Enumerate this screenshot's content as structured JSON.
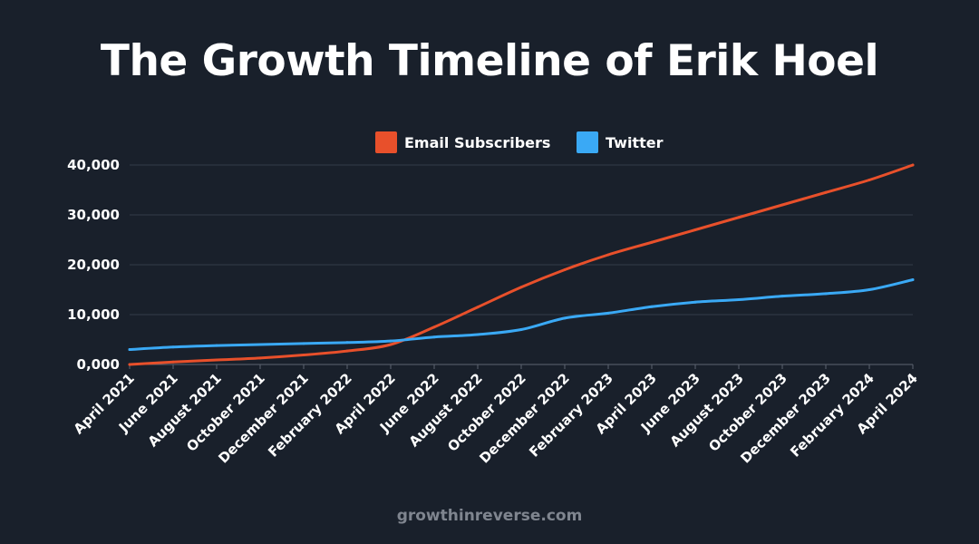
{
  "title": "The Growth Timeline of Erik Hoel",
  "footer": "growthinreverse.com",
  "chart_data": {
    "type": "line",
    "title": "The Growth Timeline of Erik Hoel",
    "xlabel": "",
    "ylabel": "",
    "ylim": [
      0,
      40000
    ],
    "grid": true,
    "legend_position": "top-center",
    "y_ticks": [
      "0,000",
      "10,000",
      "20,000",
      "30,000",
      "40,000"
    ],
    "x": [
      "April 2021",
      "June 2021",
      "August 2021",
      "October 2021",
      "December 2021",
      "February 2022",
      "April 2022",
      "June 2022",
      "August 2022",
      "October 2022",
      "December 2022",
      "February 2023",
      "April 2023",
      "June 2023",
      "August 2023",
      "October 2023",
      "December 2023",
      "February 2024",
      "April 2024"
    ],
    "series": [
      {
        "name": "Email Subscribers",
        "color": "#e8502b",
        "values": [
          0,
          500,
          900,
          1300,
          1900,
          2700,
          4000,
          7500,
          11500,
          15500,
          19000,
          22000,
          24500,
          27000,
          29500,
          32000,
          34500,
          37000,
          40000
        ]
      },
      {
        "name": "Twitter",
        "color": "#3aa9f5",
        "values": [
          3000,
          3500,
          3800,
          4000,
          4200,
          4400,
          4700,
          5500,
          6000,
          7000,
          9300,
          10300,
          11600,
          12500,
          13000,
          13700,
          14200,
          15000,
          17000
        ]
      }
    ]
  }
}
